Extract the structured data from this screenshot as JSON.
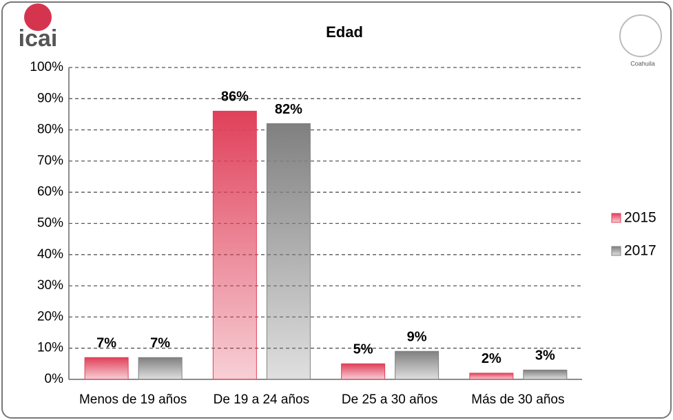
{
  "logo_left": "icai",
  "logo_right": "Coahuila",
  "chart_data": {
    "type": "bar",
    "title": "Edad",
    "categories": [
      "Menos de 19 años",
      "De 19 a 24 años",
      "De 25 a 30 años",
      "Más de 30 años"
    ],
    "series": [
      {
        "name": "2015",
        "color": "#e0405a",
        "values": [
          7,
          86,
          5,
          2
        ],
        "value_labels": [
          "7%",
          "86%",
          "5%",
          "2%"
        ]
      },
      {
        "name": "2017",
        "color": "#808080",
        "values": [
          7,
          82,
          9,
          3
        ],
        "value_labels": [
          "7%",
          "82%",
          "9%",
          "3%"
        ]
      }
    ],
    "ylim": [
      0,
      100
    ],
    "yticks": [
      {
        "value": 0,
        "label": "0%"
      },
      {
        "value": 10,
        "label": "10%"
      },
      {
        "value": 20,
        "label": "20%"
      },
      {
        "value": 30,
        "label": "30%"
      },
      {
        "value": 40,
        "label": "40%"
      },
      {
        "value": 50,
        "label": "50%"
      },
      {
        "value": 60,
        "label": "60%"
      },
      {
        "value": 70,
        "label": "70%"
      },
      {
        "value": 80,
        "label": "80%"
      },
      {
        "value": 90,
        "label": "90%"
      },
      {
        "value": 100,
        "label": "100%"
      }
    ],
    "grid": true,
    "legend": "right"
  }
}
